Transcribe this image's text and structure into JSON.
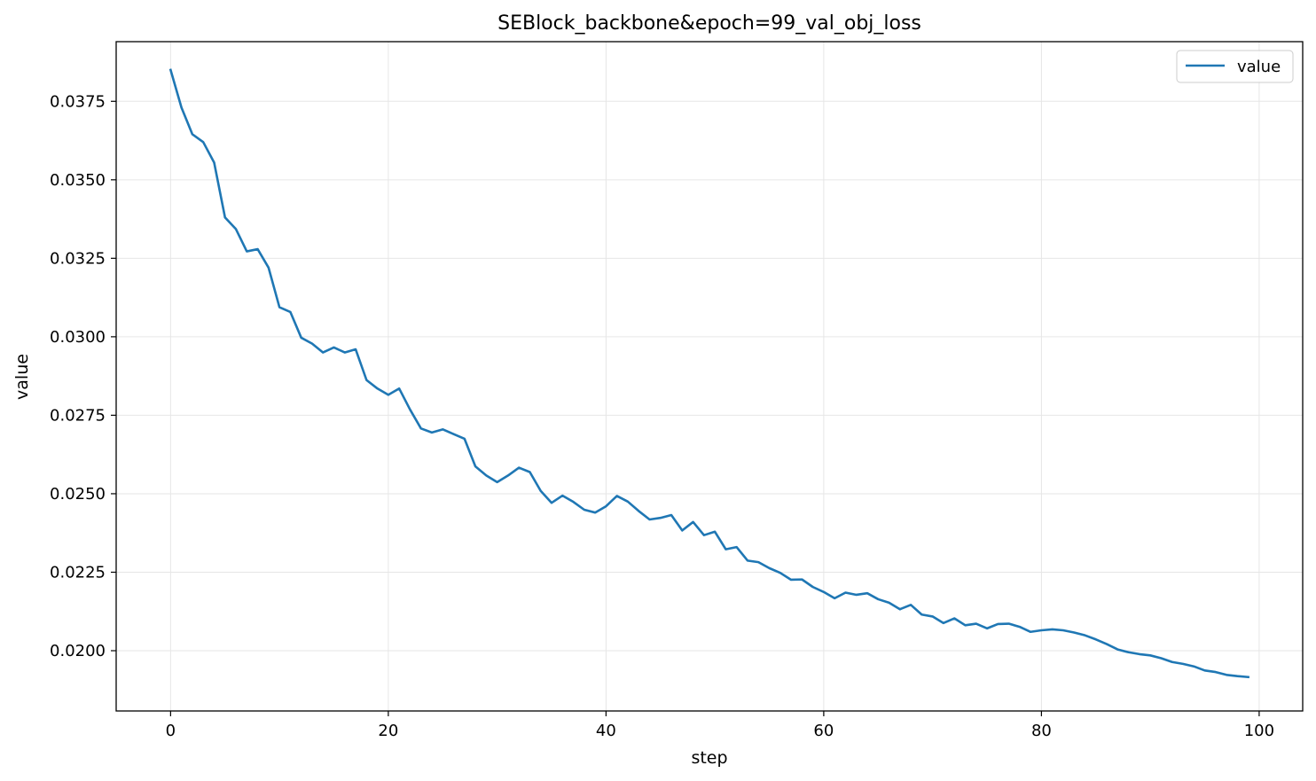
{
  "chart_data": {
    "type": "line",
    "title": "SEBlock_backbone&epoch=99_val_obj_loss",
    "xlabel": "step",
    "ylabel": "value",
    "xlim": [
      -5,
      104
    ],
    "ylim": [
      0.01808,
      0.0394
    ],
    "xticks": [
      0,
      20,
      40,
      60,
      80,
      100
    ],
    "yticks": [
      0.02,
      0.0225,
      0.025,
      0.0275,
      0.03,
      0.0325,
      0.035,
      0.0375
    ],
    "ytick_labels": [
      "0.0200",
      "0.0225",
      "0.0250",
      "0.0275",
      "0.0300",
      "0.0325",
      "0.0350",
      "0.0375"
    ],
    "grid": true,
    "legend": {
      "position": "top-right",
      "entries": [
        "value"
      ]
    },
    "colors": {
      "line": "#1f77b4",
      "grid": "#e6e6e6",
      "axes": "#000000"
    },
    "series": [
      {
        "name": "value",
        "x": [
          0,
          1,
          2,
          3,
          4,
          5,
          6,
          7,
          8,
          9,
          10,
          11,
          12,
          13,
          14,
          15,
          16,
          17,
          18,
          19,
          20,
          21,
          22,
          23,
          24,
          25,
          26,
          27,
          28,
          29,
          30,
          31,
          32,
          33,
          34,
          35,
          36,
          37,
          38,
          39,
          40,
          41,
          42,
          43,
          44,
          45,
          46,
          47,
          48,
          49,
          50,
          51,
          52,
          53,
          54,
          55,
          56,
          57,
          58,
          59,
          60,
          61,
          62,
          63,
          64,
          65,
          66,
          67,
          68,
          69,
          70,
          71,
          72,
          73,
          74,
          75,
          76,
          77,
          78,
          79,
          80,
          81,
          82,
          83,
          84,
          85,
          86,
          87,
          88,
          89,
          90,
          91,
          92,
          93,
          94,
          95,
          96,
          97,
          98,
          99
        ],
        "values": [
          0.0385,
          0.0373,
          0.03645,
          0.0362,
          0.03555,
          0.0338,
          0.03343,
          0.03272,
          0.03279,
          0.0322,
          0.03094,
          0.03079,
          0.02997,
          0.02978,
          0.0295,
          0.02966,
          0.0295,
          0.0296,
          0.02862,
          0.02835,
          0.02815,
          0.02835,
          0.02768,
          0.02708,
          0.02695,
          0.02705,
          0.0269,
          0.02675,
          0.02587,
          0.02558,
          0.02537,
          0.02558,
          0.02583,
          0.02569,
          0.02509,
          0.02471,
          0.02494,
          0.02474,
          0.02449,
          0.0244,
          0.0246,
          0.02493,
          0.02475,
          0.02445,
          0.02418,
          0.02423,
          0.02432,
          0.02383,
          0.0241,
          0.02368,
          0.02379,
          0.02323,
          0.0233,
          0.02287,
          0.02282,
          0.02263,
          0.02248,
          0.02226,
          0.02227,
          0.02203,
          0.02187,
          0.02167,
          0.02185,
          0.02178,
          0.02183,
          0.02164,
          0.02153,
          0.02132,
          0.02146,
          0.02115,
          0.02109,
          0.02088,
          0.02103,
          0.02081,
          0.02086,
          0.02071,
          0.02085,
          0.02086,
          0.02076,
          0.0206,
          0.02065,
          0.02068,
          0.02065,
          0.02058,
          0.02049,
          0.02036,
          0.02021,
          0.02004,
          0.01995,
          0.01989,
          0.01985,
          0.01976,
          0.01964,
          0.01958,
          0.0195,
          0.01937,
          0.01932,
          0.01923,
          0.01919,
          0.01916
        ]
      }
    ]
  }
}
